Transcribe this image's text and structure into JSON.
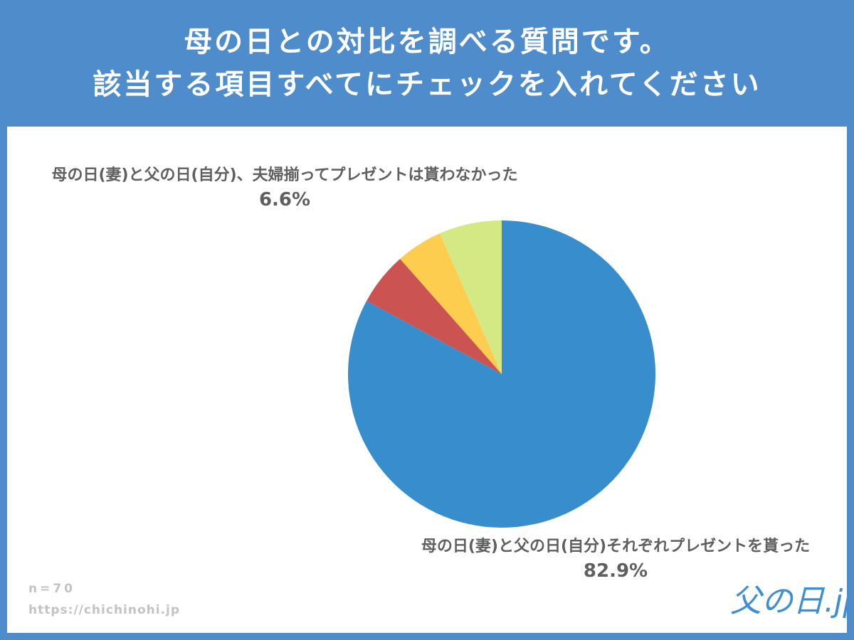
{
  "header": {
    "line1": "母の日との対比を調べる質問です。",
    "line2": "該当する項目すべてにチェックを入れてください"
  },
  "chart_data": {
    "type": "pie",
    "slices": [
      {
        "label": "母の日(妻)と父の日(自分)それぞれプレゼントを貰った",
        "value": 82.9,
        "value_label": "82.9%",
        "color": "#388dcc"
      },
      {
        "label": "",
        "value": 5.6,
        "value_label": "",
        "color": "#cb5351"
      },
      {
        "label": "",
        "value": 4.9,
        "value_label": "",
        "color": "#fdcd50"
      },
      {
        "label": "母の日(妻)と父の日(自分)、夫婦揃ってプレゼントは貰わなかった",
        "value": 6.6,
        "value_label": "6.6%",
        "color": "#d4e884"
      }
    ],
    "legend": "none"
  },
  "footer": {
    "sample": "n=70",
    "url": "https://chichinohi.jp"
  },
  "logo": {
    "text": "父の日.jp",
    "color": "#3e8fd0"
  }
}
